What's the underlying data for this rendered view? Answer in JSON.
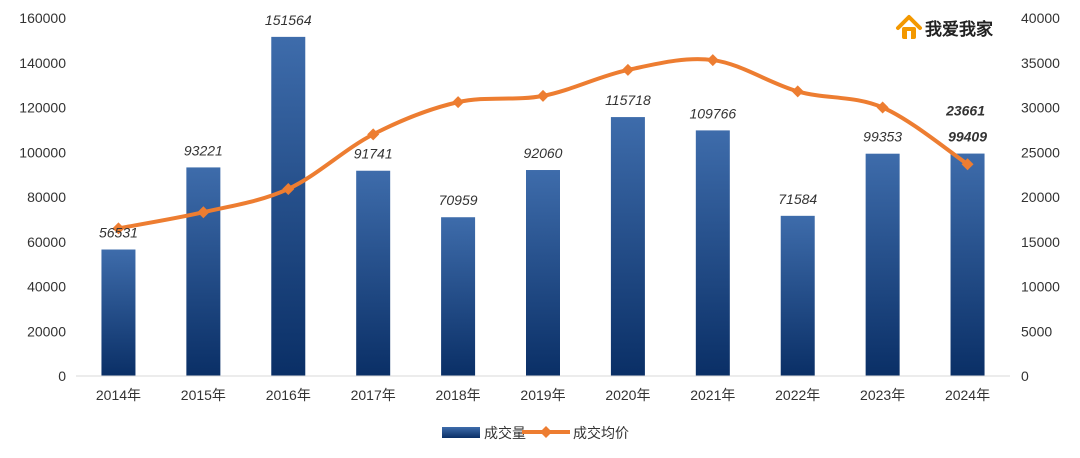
{
  "brand": {
    "name": "我爱我家",
    "logo_icon": "house-logo-icon",
    "logo_color": "#f39800"
  },
  "colors": {
    "bar_top": "#3e6cab",
    "bar_bottom": "#0a2f66",
    "line": "#ed7d31",
    "axis": "#d9d9d9"
  },
  "chart_data": {
    "type": "bar",
    "title": "",
    "categories": [
      "2014年",
      "2015年",
      "2016年",
      "2017年",
      "2018年",
      "2019年",
      "2020年",
      "2021年",
      "2022年",
      "2023年",
      "2024年"
    ],
    "series": [
      {
        "name": "成交量",
        "type": "bar",
        "axis": "left",
        "values": [
          56531,
          93221,
          151564,
          91741,
          70959,
          92060,
          115718,
          109766,
          71584,
          99353,
          99409
        ]
      },
      {
        "name": "成交均价",
        "type": "line",
        "axis": "right",
        "values": [
          16500,
          18300,
          20900,
          27000,
          30600,
          31300,
          34200,
          35300,
          31800,
          30000,
          23661
        ],
        "labeled_value": "23661"
      }
    ],
    "y_left": {
      "min": 0,
      "max": 160000,
      "ticks": [
        "0",
        "20000",
        "40000",
        "60000",
        "80000",
        "100000",
        "120000",
        "140000",
        "160000"
      ]
    },
    "y_right": {
      "min": 0,
      "max": 40000,
      "ticks": [
        "0",
        "5000",
        "10000",
        "15000",
        "20000",
        "25000",
        "30000",
        "35000",
        "40000"
      ]
    },
    "legend": {
      "position": "bottom",
      "items": [
        "成交量",
        "成交均价"
      ]
    },
    "grid": false
  }
}
